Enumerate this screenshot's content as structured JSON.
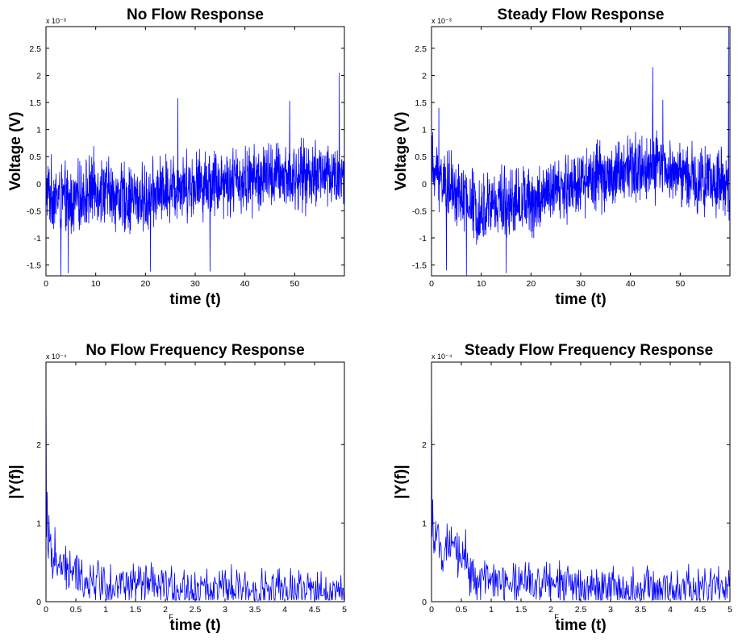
{
  "chart_data": [
    {
      "type": "line",
      "title": "No Flow Response",
      "xlabel": "time (t)",
      "ylabel": "Voltage (V)",
      "xlim": [
        0,
        60
      ],
      "ylim": [
        -1.7,
        2.9
      ],
      "xticks": [
        0,
        10,
        20,
        30,
        40,
        50
      ],
      "xtick_labels": [
        "0",
        "10",
        "20",
        "30",
        "40",
        "50"
      ],
      "yticks": [
        -1.5,
        -1,
        -0.5,
        0,
        0.5,
        1,
        1.5,
        2,
        2.5
      ],
      "ytick_labels": [
        "-1.5",
        "-1",
        "-0.5",
        "0",
        "0.5",
        "1",
        "1.5",
        "2",
        "2.5"
      ],
      "y_exponent": "x 10⁻³",
      "x_note": "",
      "color": "#0000ff",
      "trend": [
        [
          0,
          -0.15
        ],
        [
          5,
          -0.35
        ],
        [
          10,
          -0.05
        ],
        [
          15,
          -0.25
        ],
        [
          20,
          -0.3
        ],
        [
          25,
          -0.05
        ],
        [
          30,
          0.0
        ],
        [
          35,
          0.05
        ],
        [
          40,
          0.05
        ],
        [
          45,
          0.15
        ],
        [
          50,
          0.1
        ],
        [
          55,
          0.2
        ],
        [
          60,
          0.1
        ]
      ],
      "noise": 0.55,
      "samples": 1300,
      "spikes": [
        [
          59,
          2.05
        ],
        [
          26.5,
          1.58
        ],
        [
          49,
          1.53
        ],
        [
          4.5,
          -1.65
        ],
        [
          33,
          -1.62
        ],
        [
          21,
          -1.62
        ],
        [
          3,
          -1.7
        ]
      ]
    },
    {
      "type": "line",
      "title": "Steady Flow Response",
      "xlabel": "time (t)",
      "ylabel": "Voltage (V)",
      "xlim": [
        0,
        60
      ],
      "ylim": [
        -1.7,
        2.9
      ],
      "xticks": [
        0,
        10,
        20,
        30,
        40,
        50
      ],
      "xtick_labels": [
        "0",
        "10",
        "20",
        "30",
        "40",
        "50"
      ],
      "yticks": [
        -1.5,
        -1,
        -0.5,
        0,
        0.5,
        1,
        1.5,
        2,
        2.5
      ],
      "ytick_labels": [
        "-1.5",
        "-1",
        "-0.5",
        "0",
        "0.5",
        "1",
        "1.5",
        "2",
        "2.5"
      ],
      "y_exponent": "x 10⁻³",
      "x_note": "",
      "color": "#0000ff",
      "trend": [
        [
          0,
          0.3
        ],
        [
          5,
          -0.2
        ],
        [
          10,
          -0.45
        ],
        [
          15,
          -0.3
        ],
        [
          20,
          -0.35
        ],
        [
          25,
          -0.15
        ],
        [
          30,
          0.05
        ],
        [
          35,
          0.15
        ],
        [
          40,
          0.25
        ],
        [
          45,
          0.3
        ],
        [
          50,
          0.2
        ],
        [
          55,
          0.05
        ],
        [
          60,
          -0.05
        ]
      ],
      "noise": 0.55,
      "samples": 1300,
      "spikes": [
        [
          44.5,
          2.15
        ],
        [
          59.7,
          2.9
        ],
        [
          7,
          -1.7
        ],
        [
          1.5,
          1.4
        ],
        [
          46.5,
          1.55
        ],
        [
          15,
          -1.65
        ],
        [
          3,
          -1.6
        ]
      ]
    },
    {
      "type": "line",
      "title": "No Flow Frequency Response",
      "xlabel": "time (t)",
      "ylabel": "|Y(f)|",
      "xlim": [
        0,
        5
      ],
      "ylim": [
        0,
        3.05
      ],
      "xticks": [
        0,
        0.5,
        1,
        1.5,
        2,
        2.5,
        3,
        3.5,
        4,
        4.5,
        5
      ],
      "xtick_labels": [
        "0",
        "0.5",
        "1",
        "1.5",
        "2",
        "2.5",
        "3",
        "3.5",
        "4",
        "4.5",
        "5"
      ],
      "yticks": [
        0,
        1,
        2
      ],
      "ytick_labels": [
        "0",
        "1",
        "2"
      ],
      "y_exponent": "x 10⁻⁴",
      "x_note": "F",
      "color": "#0000ff",
      "trend": [
        [
          0,
          0.75
        ],
        [
          0.1,
          0.55
        ],
        [
          0.3,
          0.4
        ],
        [
          0.6,
          0.3
        ],
        [
          1,
          0.25
        ],
        [
          1.5,
          0.2
        ],
        [
          2,
          0.17
        ],
        [
          3,
          0.15
        ],
        [
          4,
          0.13
        ],
        [
          5,
          0.12
        ]
      ],
      "noise": 0.25,
      "samples": 500,
      "spikes": [
        [
          0,
          2.95
        ],
        [
          0.02,
          1.4
        ],
        [
          0.05,
          1.1
        ],
        [
          0.15,
          0.95
        ],
        [
          0.4,
          0.65
        ]
      ]
    },
    {
      "type": "line",
      "title": "Steady Flow Frequency Response",
      "xlabel": "time (t)",
      "ylabel": "|Y(f)|",
      "xlim": [
        0,
        5
      ],
      "ylim": [
        0,
        3.05
      ],
      "xticks": [
        0,
        0.5,
        1,
        1.5,
        2,
        2.5,
        3,
        3.5,
        4,
        4.5,
        5
      ],
      "xtick_labels": [
        "0",
        "0.5",
        "1",
        "1.5",
        "2",
        "2.5",
        "3",
        "3.5",
        "4",
        "4.5",
        "5"
      ],
      "yticks": [
        0,
        1,
        2
      ],
      "ytick_labels": [
        "0",
        "1",
        "2"
      ],
      "y_exponent": "x 10⁻⁴",
      "x_note": "F",
      "color": "#0000ff",
      "trend": [
        [
          0,
          0.75
        ],
        [
          0.3,
          0.65
        ],
        [
          0.55,
          0.55
        ],
        [
          0.7,
          0.3
        ],
        [
          1,
          0.25
        ],
        [
          2,
          0.22
        ],
        [
          3,
          0.18
        ],
        [
          4,
          0.16
        ],
        [
          5,
          0.17
        ]
      ],
      "noise": 0.25,
      "samples": 500,
      "spikes": [
        [
          0,
          2.9
        ],
        [
          0.02,
          1.3
        ],
        [
          0.57,
          0.92
        ],
        [
          0.43,
          0.88
        ],
        [
          4.98,
          0.4
        ]
      ]
    }
  ]
}
